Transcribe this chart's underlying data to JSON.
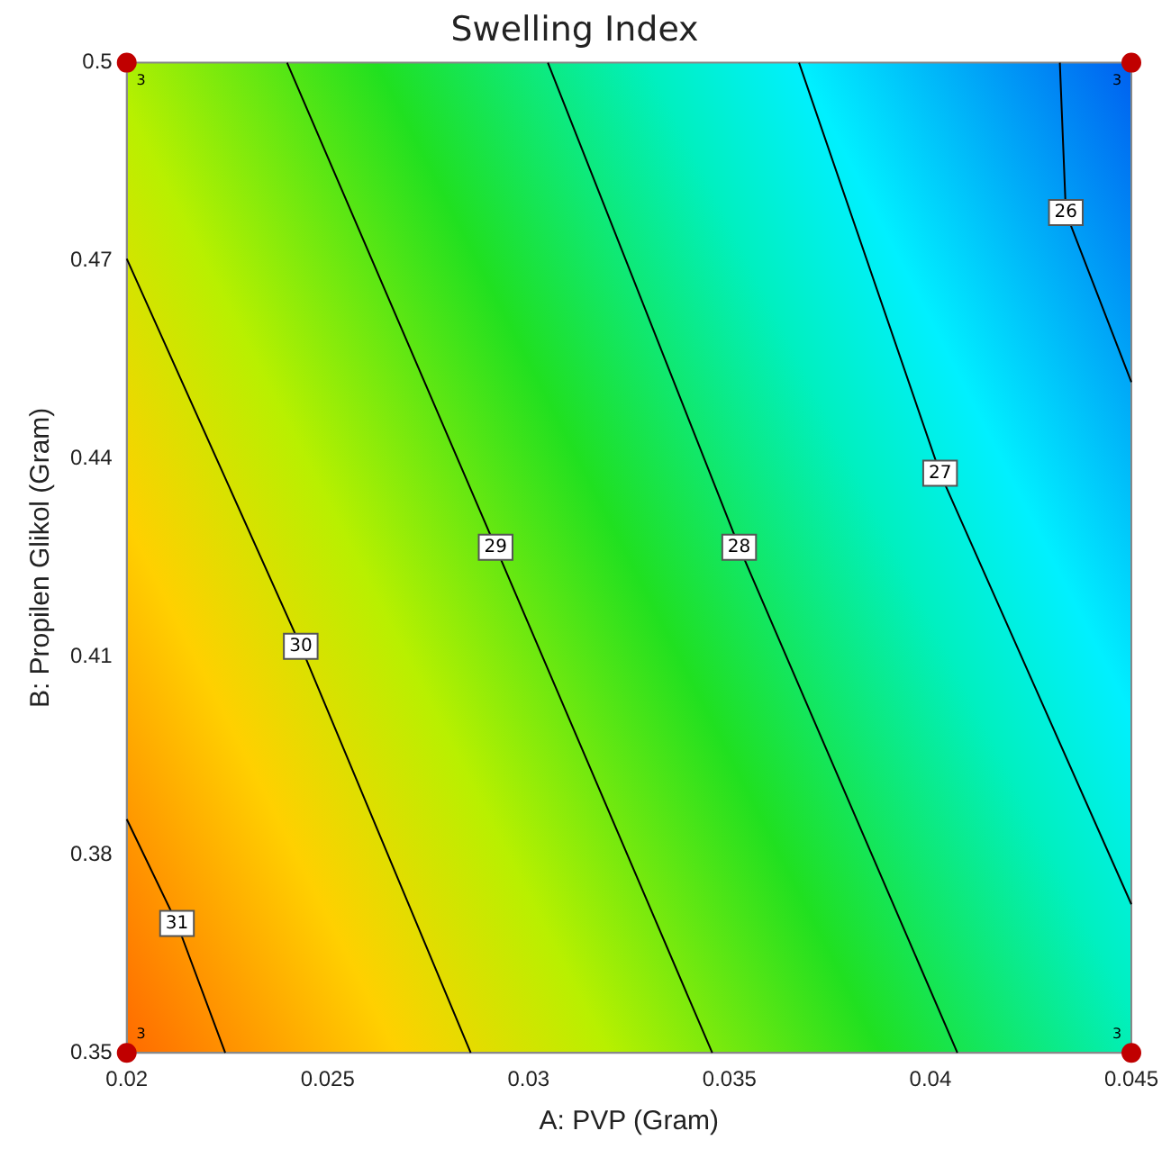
{
  "chart_data": {
    "type": "line",
    "title": "Swelling Index",
    "xlabel": "A: PVP (Gram)",
    "ylabel": "B: Propilen Glikol (Gram)",
    "xlim": [
      0.02,
      0.045
    ],
    "xticks": [
      0.02,
      0.025,
      0.03,
      0.035,
      0.04,
      0.045
    ],
    "ylim": [
      0.35,
      0.5
    ],
    "yticks": [
      0.35,
      0.38,
      0.41,
      0.44,
      0.47,
      0.5
    ],
    "grid": false,
    "legend": false,
    "line_style": "solid",
    "series": [
      {
        "name": "31",
        "color": "#000000",
        "x": [
          0.02,
          0.02125,
          0.02245
        ],
        "values": [
          0.3854,
          0.3696,
          0.35
        ]
      },
      {
        "name": "30",
        "color": "#000000",
        "x": [
          0.02,
          0.02433,
          0.02856
        ],
        "values": [
          0.4703,
          0.4116,
          0.35
        ]
      },
      {
        "name": "29",
        "color": "#000000",
        "x": [
          0.02399,
          0.02918,
          0.03457
        ],
        "values": [
          0.5,
          0.4266,
          0.35
        ]
      },
      {
        "name": "28",
        "color": "#000000",
        "x": [
          0.03048,
          0.03524,
          0.04067
        ],
        "values": [
          0.5,
          0.4266,
          0.35
        ]
      },
      {
        "name": "27",
        "color": "#000000",
        "x": [
          0.03673,
          0.04024,
          0.045
        ],
        "values": [
          0.5,
          0.4378,
          0.3725
        ]
      },
      {
        "name": "26",
        "color": "#000000",
        "x": [
          0.04322,
          0.04337,
          0.045
        ],
        "values": [
          0.5,
          0.4773,
          0.4516
        ]
      },
      {
        "type": "scatter",
        "marker": "circle",
        "color": "#c00000",
        "x": [
          0.02,
          0.045,
          0.02,
          0.045
        ],
        "values": [
          0.5,
          0.5,
          0.35,
          0.35
        ]
      }
    ],
    "annotations": [
      "3",
      "3",
      "3",
      "3"
    ]
  }
}
